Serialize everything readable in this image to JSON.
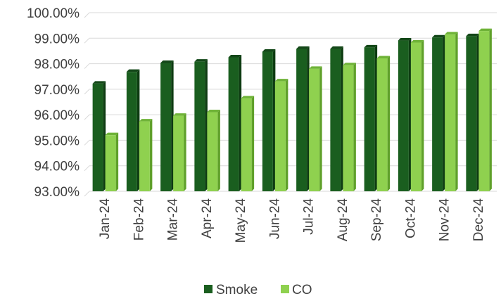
{
  "chart_data": {
    "type": "bar",
    "title": "",
    "xlabel": "",
    "ylabel": "",
    "categories": [
      "Jan-24",
      "Feb-24",
      "Mar-24",
      "Apr-24",
      "May-24",
      "Jun-24",
      "Jul-24",
      "Aug-24",
      "Sep-24",
      "Oct-24",
      "Nov-24",
      "Dec-24"
    ],
    "series": [
      {
        "name": "Smoke",
        "color": "#1a5e1f",
        "side_color": "#0e3c12",
        "top_color": "#134718",
        "values": [
          97.22,
          97.68,
          98.03,
          98.08,
          98.25,
          98.47,
          98.58,
          98.58,
          98.64,
          98.91,
          99.03,
          99.08
        ]
      },
      {
        "name": "CO",
        "color": "#8fd14f",
        "side_color": "#5fa02a",
        "top_color": "#6fb338",
        "values": [
          95.2,
          95.74,
          95.96,
          96.1,
          96.64,
          97.31,
          97.8,
          97.94,
          98.21,
          98.83,
          99.15,
          99.28
        ]
      }
    ],
    "ylim": [
      93,
      100
    ],
    "y_ticks": [
      "93.00%",
      "94.00%",
      "95.00%",
      "96.00%",
      "97.00%",
      "98.00%",
      "99.00%",
      "100.00%"
    ],
    "grid": true,
    "legend_position": "bottom"
  }
}
